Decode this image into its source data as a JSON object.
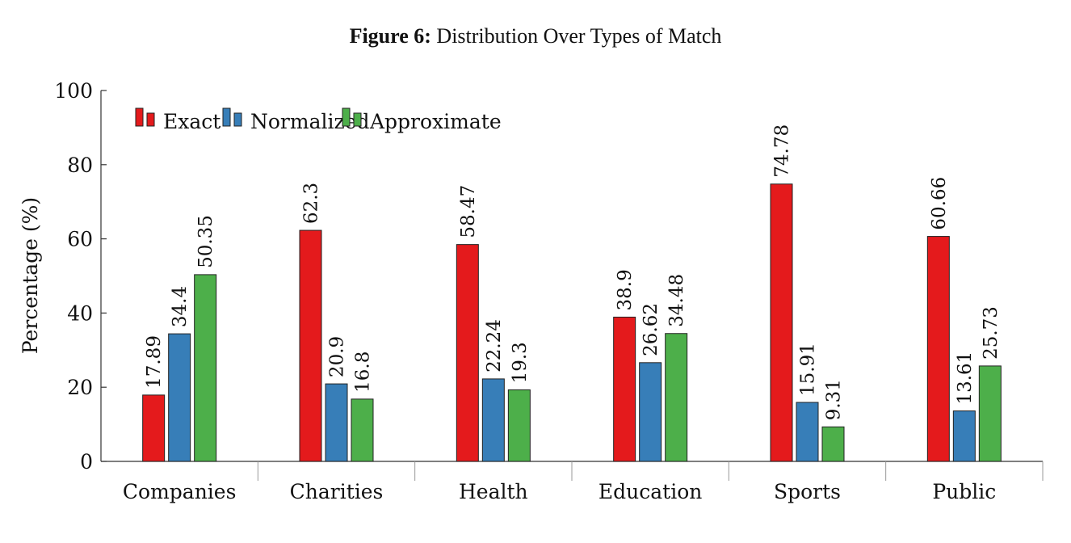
{
  "figure": {
    "label": "Figure 6:",
    "caption": "Distribution Over Types of Match"
  },
  "chart_data": {
    "type": "bar",
    "title": "Figure 6: Distribution Over Types of Match",
    "xlabel": "",
    "ylabel": "Percentage (%)",
    "ylim": [
      0,
      100
    ],
    "yticks": [
      0,
      20,
      40,
      60,
      80,
      100
    ],
    "grid": false,
    "legend_position": "top-left",
    "categories": [
      "Companies",
      "Charities",
      "Health",
      "Education",
      "Sports",
      "Public"
    ],
    "series": [
      {
        "name": "Exact",
        "color": "#e41a1c",
        "values": [
          17.89,
          62.3,
          58.47,
          38.9,
          74.78,
          60.66
        ]
      },
      {
        "name": "Normalized",
        "color": "#377eb8",
        "values": [
          34.4,
          20.9,
          22.24,
          26.62,
          15.91,
          13.61
        ]
      },
      {
        "name": "Approximate",
        "color": "#4daf4a",
        "values": [
          50.35,
          16.8,
          19.3,
          34.48,
          9.31,
          25.73
        ]
      }
    ]
  }
}
